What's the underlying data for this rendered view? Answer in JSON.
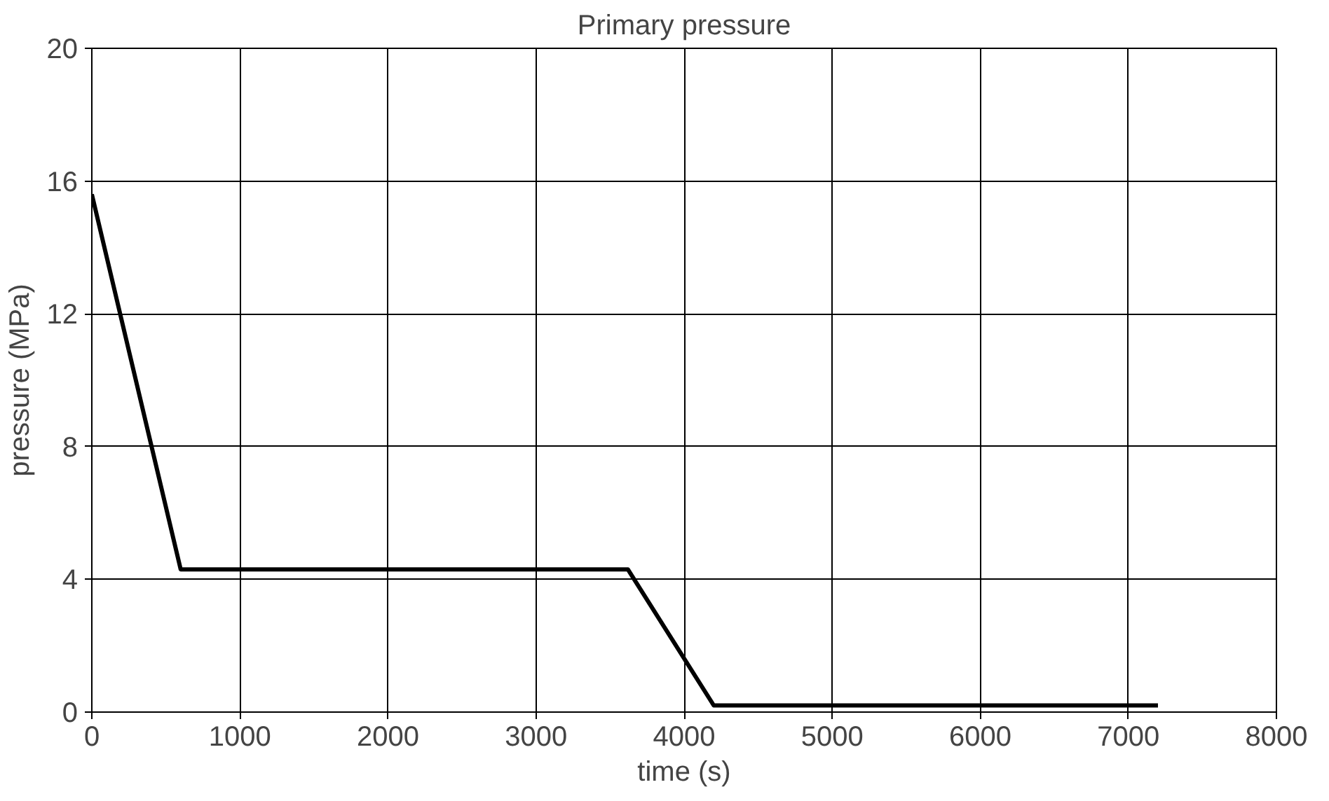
{
  "chart_data": {
    "type": "line",
    "title": "Primary pressure",
    "xlabel": "time (s)",
    "ylabel": "pressure (MPa)",
    "xlim": [
      0,
      8000
    ],
    "xticks": [
      0,
      1000,
      2000,
      3000,
      4000,
      5000,
      6000,
      7000,
      8000
    ],
    "ylim": [
      0,
      20
    ],
    "yticks": [
      0,
      4,
      8,
      12,
      16,
      20
    ],
    "grid": true,
    "marker": "none",
    "line_style": "solid",
    "series": [
      {
        "color": "#000000",
        "x": [
          0,
          600,
          3620,
          4200,
          7200
        ],
        "values": [
          15.6,
          4.3,
          4.3,
          0.2,
          0.2
        ]
      }
    ]
  }
}
